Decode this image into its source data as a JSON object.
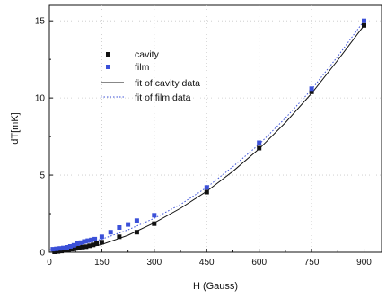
{
  "chart_data": {
    "type": "scatter",
    "xlabel": "H (Gauss)",
    "ylabel": "dT[mK]",
    "xlim": [
      0,
      950
    ],
    "ylim": [
      0,
      16
    ],
    "xticks": [
      0,
      150,
      300,
      450,
      600,
      750,
      900
    ],
    "yticks": [
      0,
      5,
      10,
      15
    ],
    "grid": true,
    "legend_placement": "top-left",
    "series": [
      {
        "name": "cavity",
        "kind": "points",
        "marker": "square",
        "color": "#111111",
        "x": [
          15,
          25,
          35,
          45,
          55,
          65,
          75,
          85,
          95,
          105,
          115,
          125,
          135,
          150,
          200,
          250,
          300,
          450,
          600,
          750,
          900
        ],
        "y": [
          0.03,
          0.05,
          0.08,
          0.12,
          0.16,
          0.2,
          0.25,
          0.3,
          0.33,
          0.36,
          0.42,
          0.48,
          0.55,
          0.65,
          1.0,
          1.3,
          1.85,
          3.9,
          6.75,
          10.4,
          14.7
        ]
      },
      {
        "name": "film",
        "kind": "points",
        "marker": "square",
        "color": "#3b50d8",
        "x": [
          10,
          20,
          30,
          40,
          50,
          60,
          70,
          80,
          90,
          100,
          110,
          120,
          130,
          150,
          175,
          200,
          225,
          250,
          300,
          450,
          600,
          750,
          900
        ],
        "y": [
          0.2,
          0.22,
          0.25,
          0.28,
          0.32,
          0.38,
          0.45,
          0.55,
          0.62,
          0.7,
          0.75,
          0.8,
          0.85,
          1.0,
          1.3,
          1.6,
          1.8,
          2.05,
          2.4,
          4.2,
          7.1,
          10.6,
          15.0
        ]
      },
      {
        "name": "fit of cavity data",
        "kind": "line",
        "style": "solid",
        "color": "#111111",
        "x": [
          0,
          75,
          150,
          225,
          300,
          375,
          450,
          525,
          600,
          675,
          750,
          825,
          900
        ],
        "y": [
          0,
          0.15,
          0.5,
          1.1,
          1.9,
          2.85,
          3.95,
          5.25,
          6.7,
          8.4,
          10.3,
          12.45,
          14.7
        ]
      },
      {
        "name": "fit of film data",
        "kind": "line",
        "style": "dotted",
        "color": "#3b50d8",
        "x": [
          0,
          75,
          150,
          225,
          300,
          375,
          450,
          525,
          600,
          675,
          750,
          825,
          900
        ],
        "y": [
          0.15,
          0.4,
          0.85,
          1.45,
          2.2,
          3.1,
          4.2,
          5.55,
          7.0,
          8.7,
          10.55,
          12.7,
          15.0
        ]
      }
    ]
  }
}
